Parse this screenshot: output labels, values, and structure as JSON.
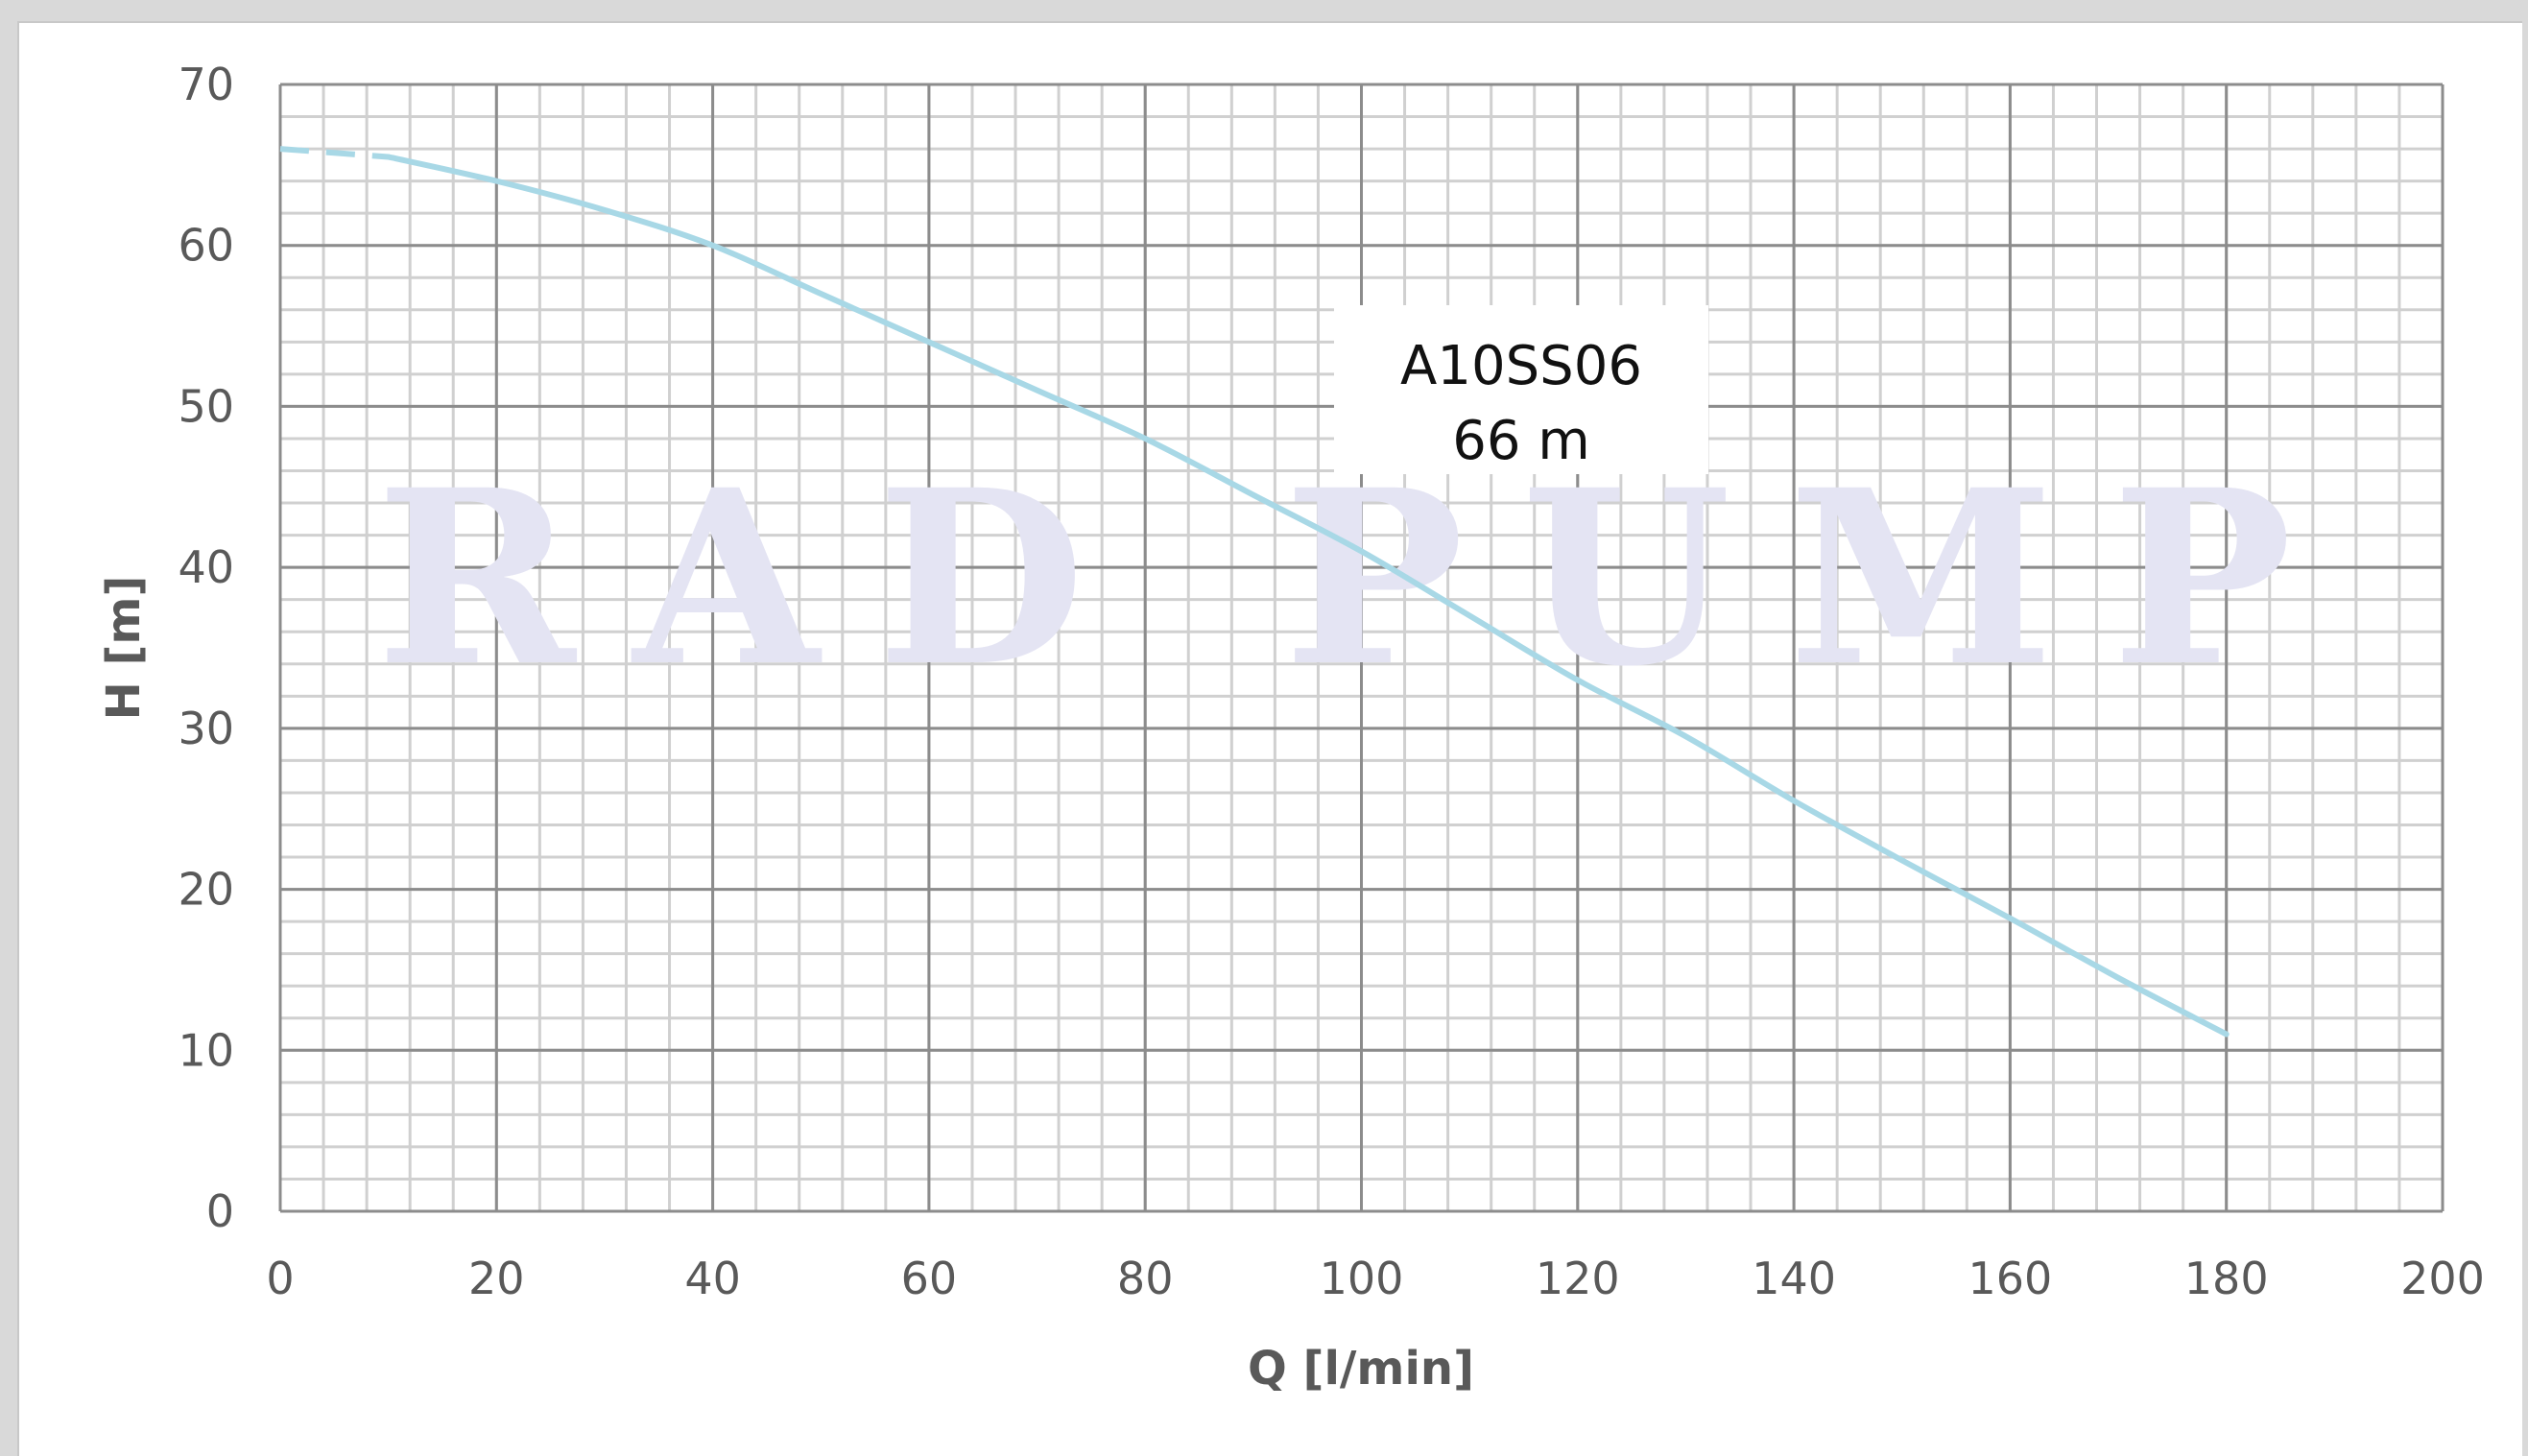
{
  "chart_data": {
    "type": "line",
    "xlabel": "Q [l/min]",
    "ylabel": "H [m]",
    "xlim": [
      0,
      200
    ],
    "ylim": [
      0,
      70
    ],
    "xticks": [
      0,
      20,
      40,
      60,
      80,
      100,
      120,
      140,
      160,
      180,
      200
    ],
    "yticks": [
      0,
      10,
      20,
      30,
      40,
      50,
      60,
      70
    ],
    "grid": true,
    "series": [
      {
        "color": "#a8d8e6",
        "x": [
          0,
          10,
          20,
          30,
          40,
          50,
          60,
          70,
          80,
          90,
          100,
          110,
          120,
          130,
          140,
          150,
          160,
          170,
          180
        ],
        "y": [
          66,
          65.5,
          64,
          62.2,
          60,
          57,
          54,
          51,
          48,
          44.5,
          41,
          37,
          33,
          29.5,
          25.5,
          21.8,
          18.2,
          14.5,
          11
        ],
        "dashed_until_x": 10
      }
    ],
    "annotation": {
      "line1": "A10SS06",
      "line2": "66 m"
    },
    "watermark": "RAD PUMP"
  }
}
